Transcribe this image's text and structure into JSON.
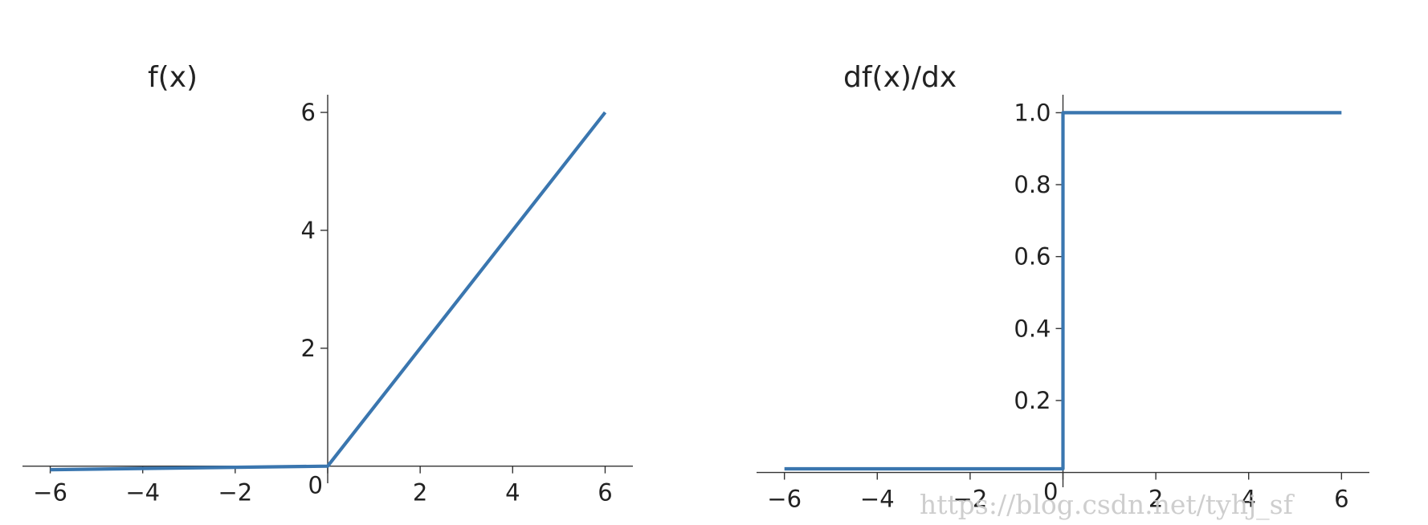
{
  "chart_data": [
    {
      "type": "line",
      "title": "f(x)",
      "xlim": [
        -6.6,
        6.6
      ],
      "ylim": [
        -0.1,
        6.3
      ],
      "xticks": [
        -6,
        -4,
        -2,
        0,
        2,
        4,
        6
      ],
      "xtick_labels": [
        "−6",
        "−4",
        "−2",
        "0",
        "2",
        "4",
        "6"
      ],
      "yticks": [
        2,
        4,
        6
      ],
      "ytick_labels": [
        "2",
        "4",
        "6"
      ],
      "spines": "centered at origin",
      "grid": false,
      "series": [
        {
          "color": "#3a76af",
          "x": [
            -6,
            0,
            6
          ],
          "y": [
            -0.06,
            0,
            6
          ]
        }
      ]
    },
    {
      "type": "line",
      "title": "df(x)/dx",
      "xlim": [
        -6.6,
        6.6
      ],
      "ylim": [
        -0.01,
        1.05
      ],
      "xticks": [
        -6,
        -4,
        -2,
        0,
        2,
        4,
        6
      ],
      "xtick_labels": [
        "−6",
        "−4",
        "−2",
        "0",
        "2",
        "4",
        "6"
      ],
      "yticks": [
        0.2,
        0.4,
        0.6,
        0.8,
        1.0
      ],
      "ytick_labels": [
        "0.2",
        "0.4",
        "0.6",
        "0.8",
        "1.0"
      ],
      "spines": "centered at origin",
      "grid": false,
      "series": [
        {
          "color": "#3a76af",
          "x": [
            -6,
            0,
            0,
            6
          ],
          "y": [
            0.01,
            0.01,
            1,
            1
          ]
        }
      ]
    }
  ],
  "watermark": "https://blog.csdn.net/tyhj_sf"
}
